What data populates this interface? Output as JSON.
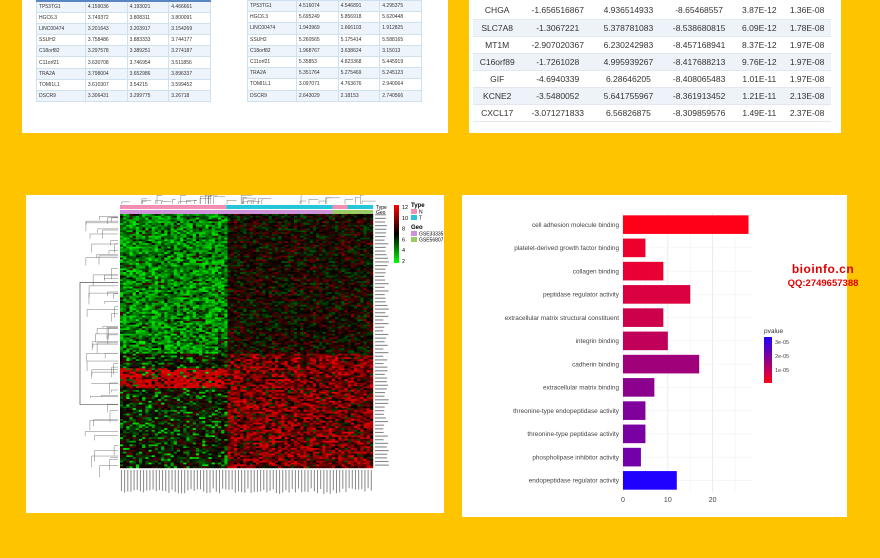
{
  "table_left": {
    "rows": [
      [
        "TP53TG1",
        "4.159036",
        "4.193021",
        "4.466661"
      ],
      [
        "HGC6.3",
        "3.749372",
        "3.808311",
        "3.800091"
      ],
      [
        "LINC00474",
        "3.201643",
        "3.203917",
        "3.154269"
      ],
      [
        "SSUH2",
        "3.758486",
        "3.883333",
        "3.744177"
      ],
      [
        "C18orf82",
        "3.297578",
        "3.389251",
        "3.274187"
      ],
      [
        "C11orf21",
        "3.630708",
        "3.746954",
        "3.511856"
      ],
      [
        "TRA2A",
        "3.798004",
        "3.652986",
        "3.896337"
      ],
      [
        "TOMI1L1",
        "3.610307",
        "3.54215",
        "3.599452"
      ],
      [
        "DSCR9",
        "3.306431",
        "3.299775",
        "3.26718"
      ]
    ]
  },
  "table_middle": {
    "rows": [
      [
        "TP53TG1",
        "4.516074",
        "4.546891",
        "4.295375"
      ],
      [
        "HGC6.3",
        "5.695249",
        "5.856918",
        "5.620448"
      ],
      [
        "LINC00474",
        "1.943969",
        "1.666103",
        "1.912825"
      ],
      [
        "SSUH2",
        "5.260565",
        "5.175414",
        "5.588165"
      ],
      [
        "C18orf82",
        "1.968767",
        "3.638624",
        "3.15013"
      ],
      [
        "C11orf21",
        "5.35853",
        "4.823368",
        "5.445919"
      ],
      [
        "TRA2A",
        "5.351764",
        "5.275469",
        "5.245123"
      ],
      [
        "TOMI1L1",
        "3.097071",
        "4.763676",
        "2.940064"
      ],
      [
        "DSCR9",
        "2.643029",
        "2.18153",
        "2.740566"
      ]
    ]
  },
  "gene_table": {
    "rows": [
      [
        "CHGA",
        "-1.656516867",
        "4.936514933",
        "-8.65468557",
        "3.87E-12",
        "1.36E-08"
      ],
      [
        "SLC7A8",
        "-1.3067221",
        "5.378781083",
        "-8.538680815",
        "6.09E-12",
        "1.78E-08"
      ],
      [
        "MT1M",
        "-2.907020367",
        "6.230242983",
        "-8.457168941",
        "8.37E-12",
        "1.97E-08"
      ],
      [
        "C16orf89",
        "-1.7261028",
        "4.995939267",
        "-8.417688213",
        "9.76E-12",
        "1.97E-08"
      ],
      [
        "GIF",
        "-4.6940339",
        "6.28646205",
        "-8.408065483",
        "1.01E-11",
        "1.97E-08"
      ],
      [
        "KCNE2",
        "-3.5480052",
        "5.641755967",
        "-8.361913452",
        "1.21E-11",
        "2.13E-08"
      ],
      [
        "CXCL17",
        "-3.071271833",
        "6.56826875",
        "-8.309859576",
        "1.49E-11",
        "2.37E-08"
      ]
    ]
  },
  "heatmap": {
    "legend_ticks": [
      "12",
      "10",
      "8",
      "6",
      "4",
      "2"
    ],
    "annotation_titles": {
      "type": "Type",
      "geo": "Geo"
    },
    "type_legend": {
      "title": "Type",
      "items": [
        {
          "label": "N",
          "color": "#f48fb1"
        },
        {
          "label": "T",
          "color": "#26c6da"
        }
      ]
    },
    "geo_legend": {
      "title": "Geo",
      "items": [
        {
          "label": "GSE33335",
          "color": "#ce93d8"
        },
        {
          "label": "GSE56807",
          "color": "#9ccc65"
        }
      ]
    }
  },
  "watermark": {
    "line1": "bioinfo.cn",
    "line2": "QQ:2749657388"
  },
  "chart_data": {
    "type": "bar",
    "orientation": "horizontal",
    "categories": [
      "cell adhesion molecule binding",
      "platelet-derived growth factor binding",
      "collagen binding",
      "peptidase regulator activity",
      "extracellular matrix structural constituent",
      "integrin binding",
      "cadherin binding",
      "extracellular matrix binding",
      "threonine-type endopeptidase activity",
      "threonine-type peptidase activity",
      "phospholipase inhibitor activity",
      "endopeptidase regulator activity"
    ],
    "values": [
      28,
      5,
      9,
      15,
      9,
      10,
      17,
      7,
      5,
      5,
      4,
      12
    ],
    "pvalues": [
      2e-07,
      3e-06,
      4e-06,
      6e-06,
      8e-06,
      1e-05,
      1.5e-05,
      1.8e-05,
      2e-05,
      2.1e-05,
      2.2e-05,
      3.5e-05
    ],
    "xticks": [
      "0",
      "10",
      "20"
    ],
    "xlim": [
      0,
      29
    ],
    "legend_title": "pvalue",
    "legend_ticks": [
      "3e-05",
      "2e-05",
      "1e-05"
    ],
    "color_low": "#ff0018",
    "color_high": "#1f00ff",
    "grid": true,
    "legend_position": "right",
    "title": "",
    "xlabel": "",
    "ylabel": ""
  }
}
